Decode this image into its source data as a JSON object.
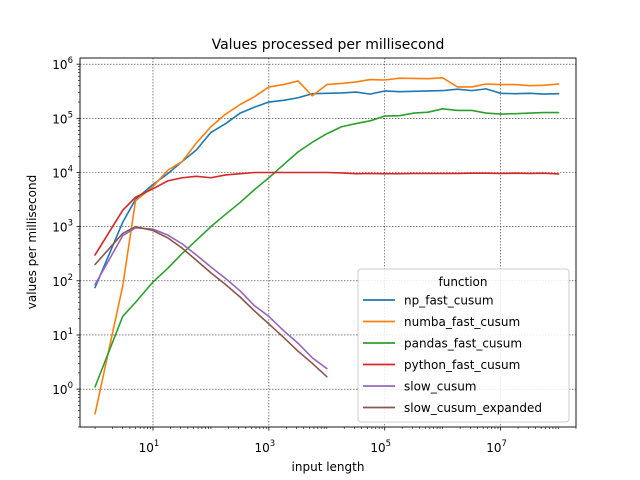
{
  "chart_data": {
    "type": "line",
    "title": "Values processed per millisecond",
    "xlabel": "input length",
    "ylabel": "values per millisecond",
    "xscale": "log",
    "yscale": "log",
    "xlim": [
      0.55,
      200000000
    ],
    "ylim": [
      0.2,
      1300000
    ],
    "grid": true,
    "legend_title": "function",
    "legend_loc": "lower-right",
    "xtick_labels": [
      "10^1",
      "10^3",
      "10^5",
      "10^7"
    ],
    "ytick_labels": [
      "10^0",
      "10^1",
      "10^2",
      "10^3",
      "10^4",
      "10^5",
      "10^6"
    ],
    "series": [
      {
        "name": "np_fast_cusum",
        "color": "#1f77b4",
        "x": [
          1,
          3,
          5,
          10,
          18,
          32,
          56,
          100,
          180,
          320,
          560,
          1000,
          1800,
          3200,
          5600,
          10000,
          18000,
          32000,
          56000,
          100000,
          180000,
          320000,
          560000,
          1000000,
          1800000,
          3200000,
          5600000,
          10000000,
          18000000,
          32000000,
          56000000,
          100000000
        ],
        "y": [
          75,
          1200,
          3200,
          6000,
          9500,
          16000,
          26000,
          55000,
          80000,
          125000,
          160000,
          200000,
          215000,
          240000,
          285000,
          290000,
          295000,
          305000,
          280000,
          320000,
          310000,
          315000,
          320000,
          325000,
          345000,
          325000,
          350000,
          290000,
          285000,
          290000,
          280000,
          285000
        ]
      },
      {
        "name": "numba_fast_cusum",
        "color": "#ff7f0e",
        "x": [
          1,
          3,
          5,
          10,
          18,
          32,
          56,
          100,
          180,
          320,
          560,
          1000,
          1800,
          3200,
          5600,
          10000,
          18000,
          32000,
          56000,
          100000,
          180000,
          320000,
          560000,
          1000000,
          1800000,
          3200000,
          5600000,
          10000000,
          18000000,
          32000000,
          56000000,
          100000000
        ],
        "y": [
          0.35,
          80,
          3000,
          5500,
          11000,
          16000,
          35000,
          70000,
          120000,
          180000,
          250000,
          380000,
          420000,
          490000,
          260000,
          420000,
          440000,
          470000,
          520000,
          510000,
          550000,
          545000,
          540000,
          560000,
          380000,
          380000,
          430000,
          420000,
          420000,
          400000,
          410000,
          430000
        ]
      },
      {
        "name": "pandas_fast_cusum",
        "color": "#2ca02c",
        "x": [
          1,
          3,
          5,
          10,
          18,
          32,
          56,
          100,
          180,
          320,
          560,
          1000,
          1800,
          3200,
          5600,
          10000,
          18000,
          32000,
          56000,
          100000,
          180000,
          320000,
          560000,
          1000000,
          1800000,
          3200000,
          5600000,
          10000000,
          18000000,
          32000000,
          56000000,
          100000000
        ],
        "y": [
          1.1,
          22,
          40,
          95,
          170,
          320,
          560,
          1000,
          1700,
          2800,
          4800,
          8000,
          14000,
          24000,
          36000,
          52000,
          70000,
          80000,
          90000,
          110000,
          112000,
          125000,
          130000,
          150000,
          140000,
          140000,
          125000,
          120000,
          122000,
          125000,
          128000,
          128000
        ]
      },
      {
        "name": "python_fast_cusum",
        "color": "#d62728",
        "x": [
          1,
          3,
          5,
          10,
          18,
          32,
          56,
          100,
          180,
          320,
          560,
          1000,
          1800,
          3200,
          5600,
          10000,
          18000,
          32000,
          56000,
          100000,
          180000,
          320000,
          560000,
          1000000,
          1800000,
          3200000,
          5600000,
          10000000,
          18000000,
          32000000,
          56000000,
          100000000
        ],
        "y": [
          300,
          2000,
          3500,
          5000,
          7000,
          8000,
          8500,
          8000,
          9000,
          9500,
          10000,
          10000,
          10000,
          10000,
          10000,
          10000,
          9800,
          9500,
          9600,
          9500,
          9500,
          9600,
          9600,
          9600,
          9600,
          9700,
          9700,
          9600,
          9700,
          9600,
          9700,
          9400
        ]
      },
      {
        "name": "slow_cusum",
        "color": "#9467bd",
        "x": [
          1,
          3,
          5,
          10,
          18,
          32,
          56,
          100,
          180,
          320,
          560,
          1000,
          1800,
          3200,
          5600,
          10000
        ],
        "y": [
          85,
          680,
          950,
          900,
          700,
          480,
          300,
          180,
          110,
          65,
          35,
          22,
          12,
          7,
          3.8,
          2.4
        ]
      },
      {
        "name": "slow_cusum_expanded",
        "color": "#8c564b",
        "x": [
          1,
          3,
          5,
          10,
          18,
          32,
          56,
          100,
          180,
          320,
          560,
          1000,
          1800,
          3200,
          5600,
          10000
        ],
        "y": [
          200,
          750,
          1000,
          850,
          620,
          400,
          240,
          140,
          85,
          50,
          28,
          16,
          9,
          5,
          3,
          1.7
        ]
      }
    ]
  }
}
